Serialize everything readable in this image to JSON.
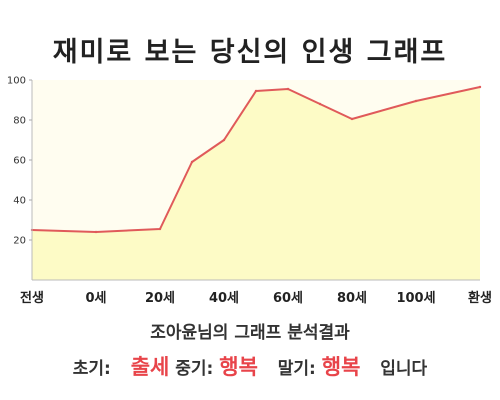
{
  "title": "재미로 보는 당신의 인생 그래프",
  "chart_data": {
    "type": "area",
    "x_labels": [
      "전생",
      "0세",
      "20세",
      "40세",
      "60세",
      "80세",
      "100세",
      "환생"
    ],
    "y_ticks": [
      20,
      40,
      60,
      80,
      100
    ],
    "ylim": [
      0,
      100
    ],
    "grid": false,
    "x": [
      "전생",
      "0세",
      "20세",
      "30세",
      "40세",
      "50세",
      "60세",
      "70세",
      "80세",
      "100세",
      "환생"
    ],
    "values": [
      25,
      24,
      25.5,
      59,
      70,
      94.5,
      95.5,
      88,
      80.5,
      89.5,
      96.5
    ],
    "colors": {
      "line": "#e05a5a",
      "fill": "#fdfbc6",
      "plot_bg": "#fffdf0"
    }
  },
  "summary": {
    "line1": "조아윤님의 그래프 분석결과",
    "early_label": "초기:",
    "early_value": "출세",
    "mid_label": "중기:",
    "mid_value": "행복",
    "late_label": "말기:",
    "late_value": "행복",
    "ending": "입니다"
  }
}
